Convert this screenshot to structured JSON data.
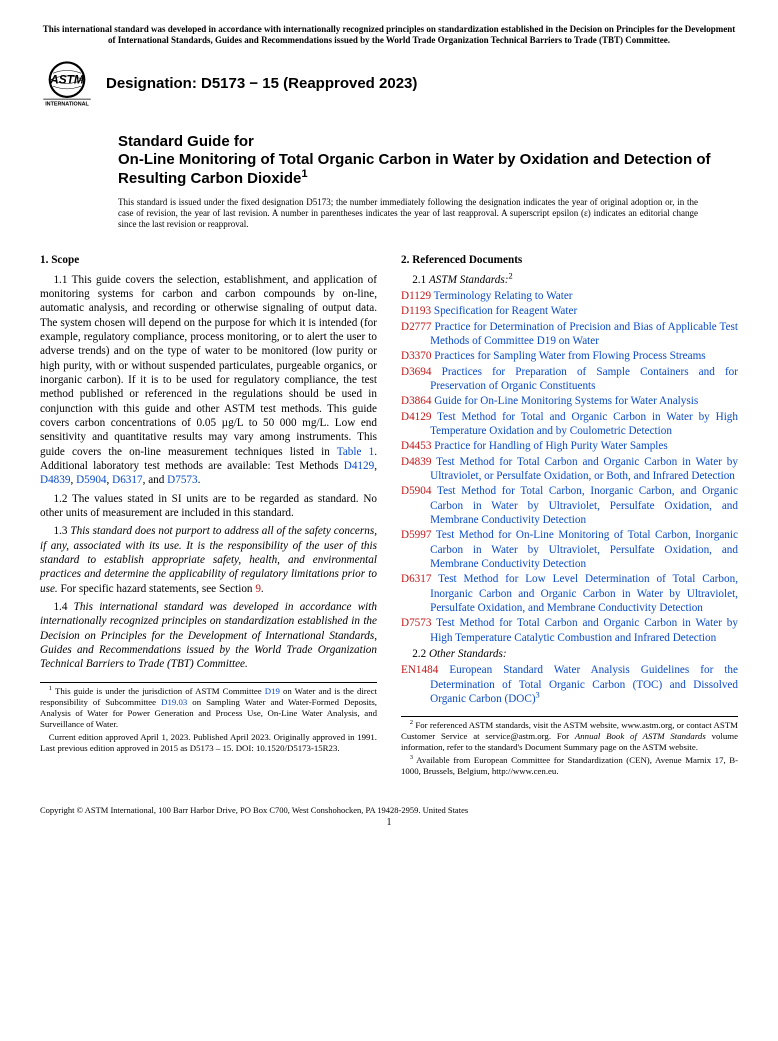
{
  "banner": "This international standard was developed in accordance with internationally recognized principles on standardization established in the Decision on Principles for the Development of International Standards, Guides and Recommendations issued by the World Trade Organization Technical Barriers to Trade (TBT) Committee.",
  "logo": {
    "top": "INTERNATIONAL"
  },
  "designation": "Designation: D5173 − 15 (Reapproved 2023)",
  "title_kicker": "Standard Guide for",
  "title_main": "On-Line Monitoring of Total Organic Carbon in Water by Oxidation and Detection of Resulting Carbon Dioxide",
  "title_sup": "1",
  "issuance": "This standard is issued under the fixed designation D5173; the number immediately following the designation indicates the year of original adoption or, in the case of revision, the year of last revision. A number in parentheses indicates the year of last reapproval. A superscript epsilon (ε) indicates an editorial change since the last revision or reapproval.",
  "left": {
    "scope_head": "1. Scope",
    "p11a": "1.1 This guide covers the selection, establishment, and application of monitoring systems for carbon and carbon compounds by on-line, automatic analysis, and recording or otherwise signaling of output data. The system chosen will depend on the purpose for which it is intended (for example, regulatory compliance, process monitoring, or to alert the user to adverse trends) and on the type of water to be monitored (low purity or high purity, with or without suspended particulates, purgeable organics, or inorganic carbon). If it is to be used for regulatory compliance, the test method published or referenced in the regulations should be used in conjunction with this guide and other ASTM test methods. This guide covers carbon concentrations of 0.05 µg/L to 50 000 mg/L. Low end sensitivity and quantitative results may vary among instruments. This guide covers the on-line measurement techniques listed in ",
    "table1": "Table 1",
    "p11b": ". Additional laboratory test methods are available: Test Methods ",
    "p11_methods": [
      "D4129",
      "D4839",
      "D5904",
      "D6317"
    ],
    "p11_and": ", and ",
    "p11_last": "D7573",
    "p12": "1.2 The values stated in SI units are to be regarded as standard. No other units of measurement are included in this standard.",
    "p13_lead": "1.3 ",
    "p13_italic": "This standard does not purport to address all of the safety concerns, if any, associated with its use. It is the responsibility of the user of this standard to establish appropriate safety, health, and environmental practices and determine the applicability of regulatory limitations prior to use.",
    "p13_tail": " For specific hazard statements, see Section ",
    "p13_sec": "9",
    "p14_lead": "1.4 ",
    "p14_italic": "This international standard was developed in accordance with internationally recognized principles on standardization established in the Decision on Principles for the Development of International Standards, Guides and Recommendations issued by the World Trade Organization Technical Barriers to Trade (TBT) Committee.",
    "fn1a": " This guide is under the jurisdiction of ASTM Committee ",
    "fn1_d19": "D19",
    "fn1b": " on Water and is the direct responsibility of Subcommittee ",
    "fn1_d1903": "D19.03",
    "fn1c": " on Sampling Water and Water-Formed Deposits, Analysis of Water for Power Generation and Process Use, On-Line Water Analysis, and Surveillance of Water.",
    "fn1d": "Current edition approved April 1, 2023. Published April 2023. Originally approved in 1991. Last previous edition approved in 2015 as D5173 – 15. DOI: 10.1520/D5173-15R23."
  },
  "right": {
    "ref_head": "2. Referenced Documents",
    "astm_sub": "2.1 ",
    "astm_lbl": "ASTM Standards:",
    "astm_sup": "2",
    "refs": [
      {
        "code": "D1129",
        "title": "Terminology Relating to Water"
      },
      {
        "code": "D1193",
        "title": "Specification for Reagent Water"
      },
      {
        "code": "D2777",
        "title": "Practice for Determination of Precision and Bias of Applicable Test Methods of Committee D19 on Water"
      },
      {
        "code": "D3370",
        "title": "Practices for Sampling Water from Flowing Process Streams"
      },
      {
        "code": "D3694",
        "title": "Practices for Preparation of Sample Containers and for Preservation of Organic Constituents"
      },
      {
        "code": "D3864",
        "title": "Guide for On-Line Monitoring Systems for Water Analysis"
      },
      {
        "code": "D4129",
        "title": "Test Method for Total and Organic Carbon in Water by High Temperature Oxidation and by Coulometric Detection"
      },
      {
        "code": "D4453",
        "title": "Practice for Handling of High Purity Water Samples"
      },
      {
        "code": "D4839",
        "title": "Test Method for Total Carbon and Organic Carbon in Water by Ultraviolet, or Persulfate Oxidation, or Both, and Infrared Detection"
      },
      {
        "code": "D5904",
        "title": "Test Method for Total Carbon, Inorganic Carbon, and Organic Carbon in Water by Ultraviolet, Persulfate Oxidation, and Membrane Conductivity Detection"
      },
      {
        "code": "D5997",
        "title": "Test Method for On-Line Monitoring of Total Carbon, Inorganic Carbon in Water by Ultraviolet, Persulfate Oxidation, and Membrane Conductivity Detection"
      },
      {
        "code": "D6317",
        "title": "Test Method for Low Level Determination of Total Carbon, Inorganic Carbon and Organic Carbon in Water by Ultraviolet, Persulfate Oxidation, and Membrane Conductivity Detection"
      },
      {
        "code": "D7573",
        "title": "Test Method for Total Carbon and Organic Carbon in Water by High Temperature Catalytic Combustion and Infrared Detection"
      }
    ],
    "other_sub": "2.2 ",
    "other_lbl": "Other Standards:",
    "other_ref_code": "EN1484",
    "other_ref_title": "European Standard Water Analysis Guidelines for the Determination of Total Organic Carbon (TOC) and Dissolved Organic Carbon (DOC)",
    "other_sup": "3",
    "fn2": " For referenced ASTM standards, visit the ASTM website, www.astm.org, or contact ASTM Customer Service at service@astm.org. For ",
    "fn2_ital": "Annual Book of ASTM Standards",
    "fn2b": " volume information, refer to the standard's Document Summary page on the ASTM website.",
    "fn3": " Available from European Committee for Standardization (CEN), Avenue Marnix 17, B-1000, Brussels, Belgium, http://www.cen.eu."
  },
  "copyright": "Copyright © ASTM International, 100 Barr Harbor Drive, PO Box C700, West Conshohocken, PA 19428-2959. United States",
  "page_num": "1",
  "colors": {
    "link_blue": "#0a4bc7",
    "link_red": "#c01818",
    "text": "#000000",
    "bg": "#ffffff"
  }
}
